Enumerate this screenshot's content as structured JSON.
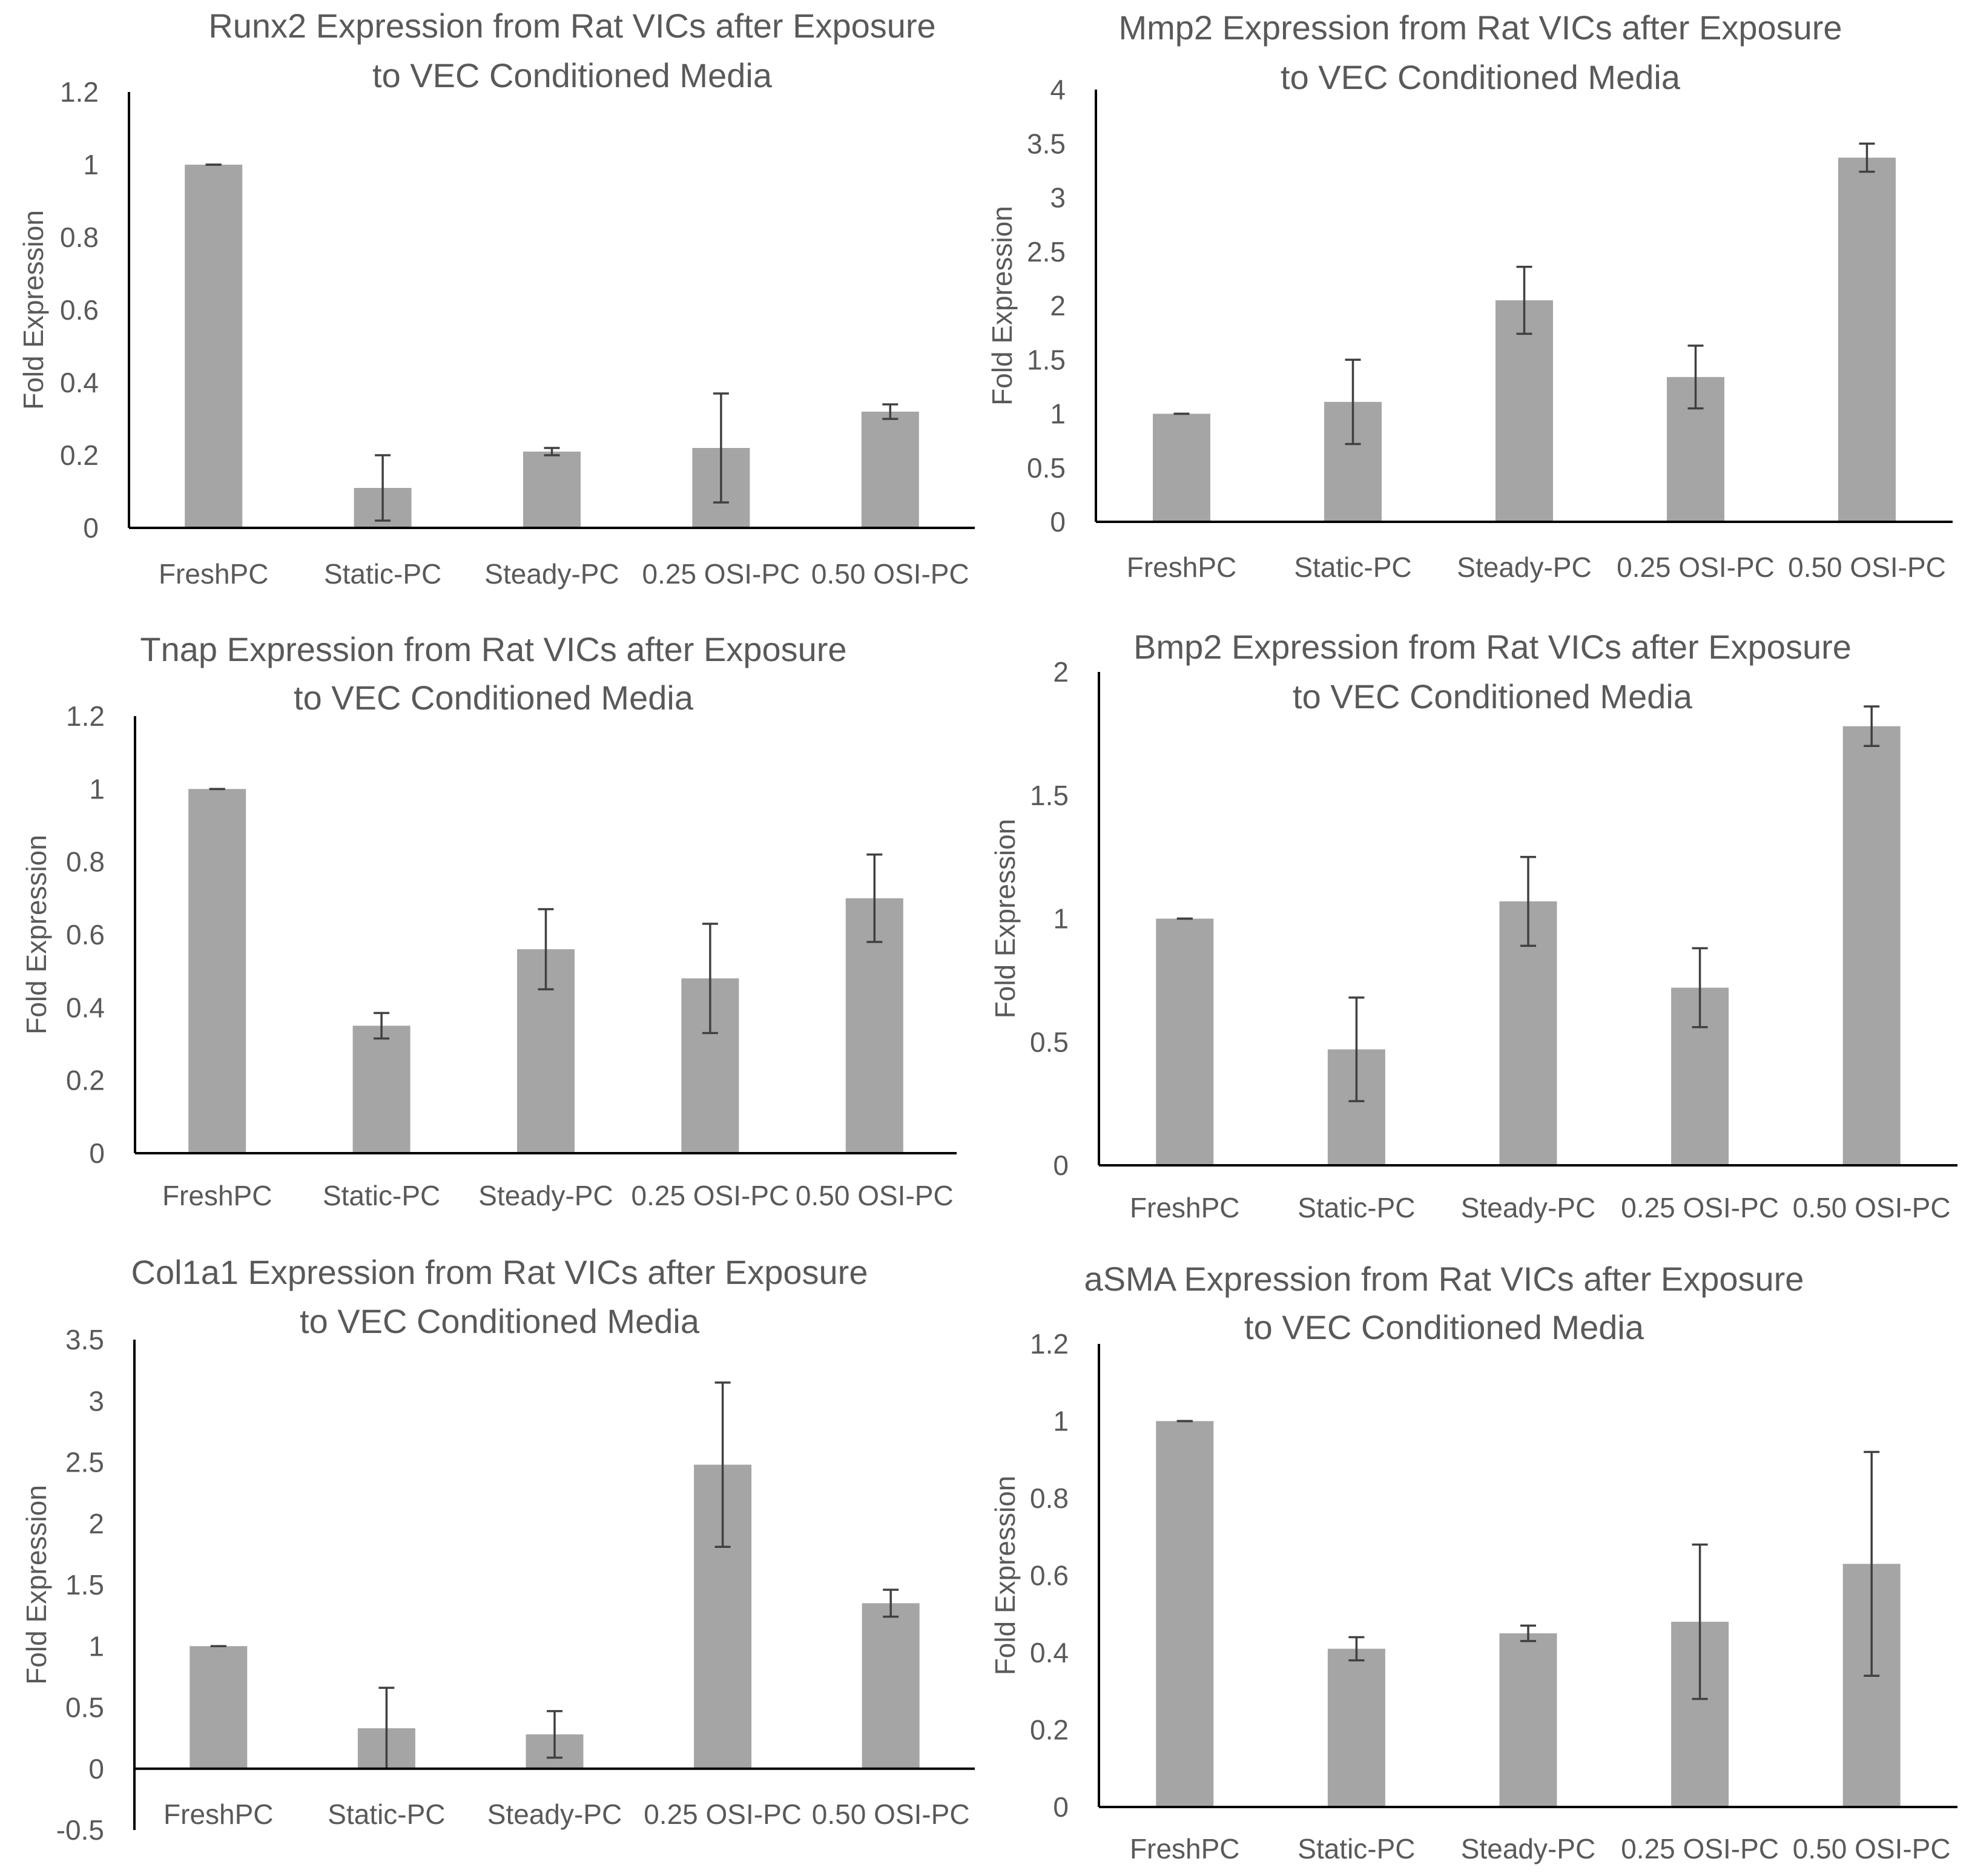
{
  "colors": {
    "bar": "#a5a5a5",
    "axis": "#000000",
    "error_bar": "#404040",
    "text": "#595959"
  },
  "chart_data": [
    {
      "type": "bar",
      "title": [
        "Runx2 Expression from Rat VICs after Exposure",
        "to VEC Conditioned Media"
      ],
      "xlabel": "",
      "ylabel": "Fold Expression",
      "categories": [
        "FreshPC",
        "Static-PC",
        "Steady-PC",
        "0.25 OSI-PC",
        "0.50 OSI-PC"
      ],
      "values": [
        1.0,
        0.11,
        0.21,
        0.22,
        0.32
      ],
      "errors": [
        0.0,
        0.09,
        0.01,
        0.15,
        0.02
      ],
      "ylim": [
        0,
        1.2
      ],
      "yticks": [
        0,
        0.2,
        0.4,
        0.6,
        0.8,
        1,
        1.2
      ],
      "ytick_labels": [
        "0",
        "0.2",
        "0.4",
        "0.6",
        "0.8",
        "1",
        "1.2"
      ]
    },
    {
      "type": "bar",
      "title": [
        "Mmp2 Expression from Rat VICs after Exposure",
        "to VEC Conditioned Media"
      ],
      "xlabel": "",
      "ylabel": "Fold Expression",
      "categories": [
        "FreshPC",
        "Static-PC",
        "Steady-PC",
        "0.25 OSI-PC",
        "0.50 OSI-PC"
      ],
      "values": [
        1.0,
        1.11,
        2.05,
        1.34,
        3.37
      ],
      "errors": [
        0.0,
        0.39,
        0.31,
        0.29,
        0.13
      ],
      "ylim": [
        0,
        4
      ],
      "yticks": [
        0,
        0.5,
        1,
        1.5,
        2,
        2.5,
        3,
        3.5,
        4
      ],
      "ytick_labels": [
        "0",
        "0.5",
        "1",
        "1.5",
        "2",
        "2.5",
        "3",
        "3.5",
        "4"
      ]
    },
    {
      "type": "bar",
      "title": [
        "Tnap Expression from Rat VICs after Exposure",
        "to VEC Conditioned Media"
      ],
      "xlabel": "",
      "ylabel": "Fold Expression",
      "categories": [
        "FreshPC",
        "Static-PC",
        "Steady-PC",
        "0.25 OSI-PC",
        "0.50 OSI-PC"
      ],
      "values": [
        1.0,
        0.35,
        0.56,
        0.48,
        0.7
      ],
      "errors": [
        0.0,
        0.035,
        0.11,
        0.15,
        0.12
      ],
      "ylim": [
        0,
        1.2
      ],
      "yticks": [
        0,
        0.2,
        0.4,
        0.6,
        0.8,
        1,
        1.2
      ],
      "ytick_labels": [
        "0",
        "0.2",
        "0.4",
        "0.6",
        "0.8",
        "1",
        "1.2"
      ]
    },
    {
      "type": "bar",
      "title": [
        "Bmp2 Expression from Rat VICs after Exposure",
        "to VEC Conditioned Media"
      ],
      "xlabel": "",
      "ylabel": "Fold Expression",
      "categories": [
        "FreshPC",
        "Static-PC",
        "Steady-PC",
        "0.25 OSI-PC",
        "0.50 OSI-PC"
      ],
      "values": [
        1.0,
        0.47,
        1.07,
        0.72,
        1.78
      ],
      "errors": [
        0.0,
        0.21,
        0.18,
        0.16,
        0.08
      ],
      "ylim": [
        0,
        2
      ],
      "yticks": [
        0,
        0.5,
        1,
        1.5,
        2
      ],
      "ytick_labels": [
        "0",
        "0.5",
        "1",
        "1.5",
        "2"
      ]
    },
    {
      "type": "bar",
      "title": [
        "Col1a1 Expression from Rat VICs after Exposure",
        "to VEC Conditioned Media"
      ],
      "xlabel": "",
      "ylabel": "Fold Expression",
      "categories": [
        "FreshPC",
        "Static-PC",
        "Steady-PC",
        "0.25 OSI-PC",
        "0.50 OSI-PC"
      ],
      "values": [
        1.0,
        0.33,
        0.28,
        2.48,
        1.35
      ],
      "errors": [
        0.0,
        0.33,
        0.19,
        0.67,
        0.11
      ],
      "ylim": [
        -0.5,
        3.5
      ],
      "yticks": [
        -0.5,
        0,
        0.5,
        1,
        1.5,
        2,
        2.5,
        3,
        3.5
      ],
      "ytick_labels": [
        "-0.5",
        "0",
        "0.5",
        "1",
        "1.5",
        "2",
        "2.5",
        "3",
        "3.5"
      ]
    },
    {
      "type": "bar",
      "title": [
        "aSMA Expression from Rat VICs after Exposure",
        "to VEC Conditioned Media"
      ],
      "xlabel": "",
      "ylabel": "Fold Expression",
      "categories": [
        "FreshPC",
        "Static-PC",
        "Steady-PC",
        "0.25 OSI-PC",
        "0.50 OSI-PC"
      ],
      "values": [
        1.0,
        0.41,
        0.45,
        0.48,
        0.63
      ],
      "errors": [
        0.0,
        0.03,
        0.02,
        0.2,
        0.29
      ],
      "ylim": [
        0,
        1.2
      ],
      "yticks": [
        0,
        0.2,
        0.4,
        0.6,
        0.8,
        1,
        1.2
      ],
      "ytick_labels": [
        "0",
        "0.2",
        "0.4",
        "0.6",
        "0.8",
        "1",
        "1.2"
      ]
    }
  ]
}
